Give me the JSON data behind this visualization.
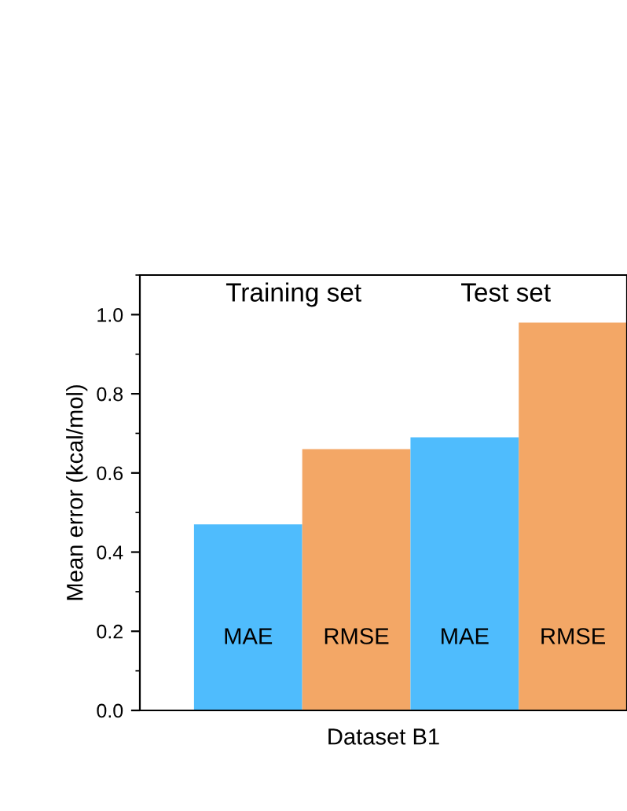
{
  "chart_data": {
    "type": "bar",
    "categories": [
      "MAE",
      "RMSE",
      "MAE",
      "RMSE"
    ],
    "values": [
      0.47,
      0.66,
      0.69,
      0.98
    ],
    "colors": [
      "#4fbcfd",
      "#f3a766",
      "#4fbcfd",
      "#f3a766"
    ],
    "xlabel": "Dataset B1",
    "ylabel": "Mean error (kcal/mol)",
    "annotations": [
      "Training set",
      "Test set"
    ],
    "ylim": [
      0,
      1.1
    ],
    "yticks": [
      {
        "value": 0,
        "label": "0.0"
      },
      0.2,
      0.4,
      0.6,
      0.8,
      {
        "value": 1,
        "label": "1.0"
      }
    ],
    "grid": false,
    "legend": false
  }
}
